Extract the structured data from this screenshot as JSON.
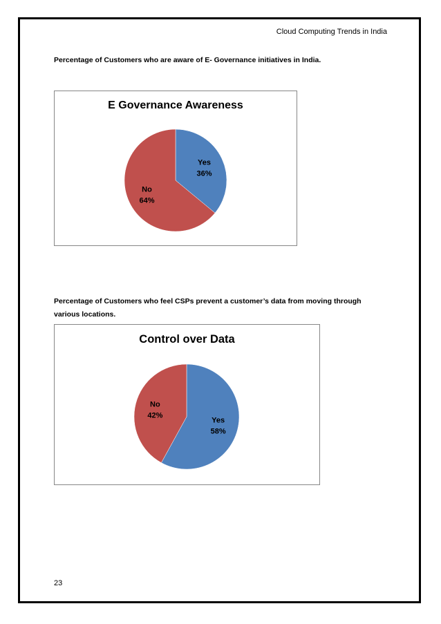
{
  "header": {
    "running_title": "Cloud Computing Trends in India"
  },
  "sections": [
    {
      "caption": "Percentage of Customers who are aware of E- Governance initiatives in India."
    },
    {
      "caption": "Percentage of Customers who feel CSPs prevent a customer’s data from moving through various locations."
    }
  ],
  "colors": {
    "yes": "#4F81BD",
    "no": "#C0504D",
    "frame": "#868686"
  },
  "chart_data": [
    {
      "type": "pie",
      "title": "E Governance Awareness",
      "categories": [
        "Yes",
        "No"
      ],
      "values": [
        36,
        64
      ],
      "labels": [
        "36%",
        "64%"
      ],
      "legend": "none"
    },
    {
      "type": "pie",
      "title": "Control over Data",
      "categories": [
        "Yes",
        "No"
      ],
      "values": [
        58,
        42
      ],
      "labels": [
        "58%",
        "42%"
      ],
      "legend": "none"
    }
  ],
  "footer": {
    "page_number": "23"
  }
}
